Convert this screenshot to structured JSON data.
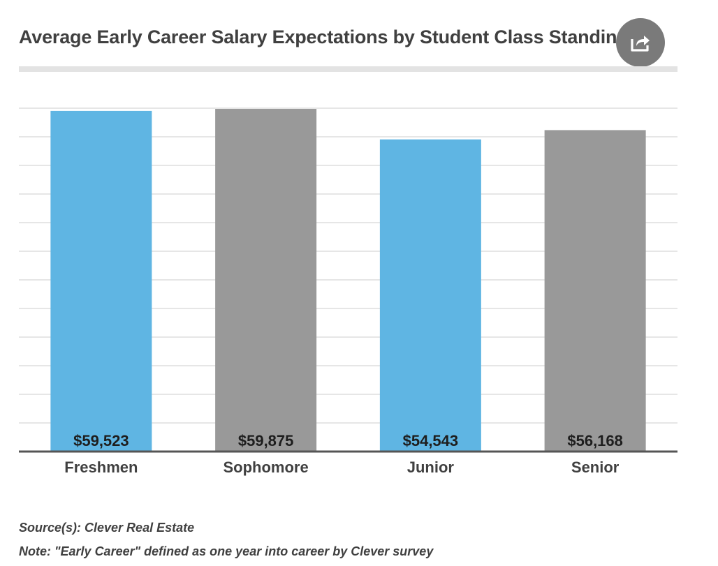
{
  "chart_data": {
    "type": "bar",
    "title": "Average Early Career Salary Expectations by Student Class Standing",
    "categories": [
      "Freshmen",
      "Sophomore",
      "Junior",
      "Senior"
    ],
    "values": [
      59523,
      59875,
      54543,
      56168
    ],
    "value_labels": [
      "$59,523",
      "$59,875",
      "$54,543",
      "$56,168"
    ],
    "bar_colors": [
      "#5fb5e3",
      "#999999",
      "#5fb5e3",
      "#999999"
    ],
    "xlabel": "",
    "ylabel": "",
    "ylim": [
      0,
      60000
    ],
    "grid": true,
    "gridline_count": 12
  },
  "share": {
    "icon": "share-icon"
  },
  "footer": {
    "source": "Source(s): Clever Real Estate",
    "note": "Note: \"Early Career\" defined as one year into career by Clever survey"
  }
}
